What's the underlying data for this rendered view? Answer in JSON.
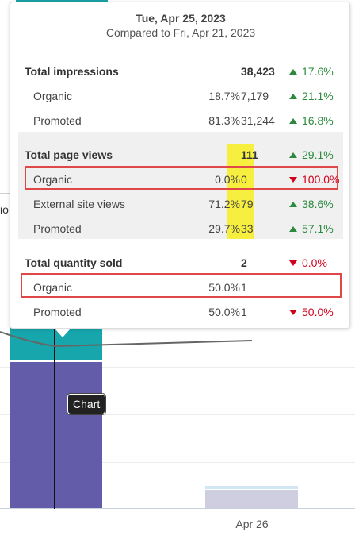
{
  "tooltip": {
    "date": "Tue, Apr 25, 2023",
    "compare": "Compared to Fri, Apr 21, 2023",
    "impressions": {
      "title": "Total impressions",
      "total": "38,423",
      "change": "17.6%",
      "rows": [
        {
          "label": "Organic",
          "pct": "18.7%",
          "value": "7,179",
          "change": "21.1%"
        },
        {
          "label": "Promoted",
          "pct": "81.3%",
          "value": "31,244",
          "change": "16.8%"
        }
      ]
    },
    "page_views": {
      "title": "Total page views",
      "total": "111",
      "change": "29.1%",
      "rows": [
        {
          "label": "Organic",
          "pct": "0.0%",
          "value": "0",
          "change": "100.0%"
        },
        {
          "label": "External site views",
          "pct": "71.2%",
          "value": "79",
          "change": "38.6%"
        },
        {
          "label": "Promoted",
          "pct": "29.7%",
          "value": "33",
          "change": "57.1%"
        }
      ]
    },
    "quantity_sold": {
      "title": "Total quantity sold",
      "total": "2",
      "change": "0.0%",
      "rows": [
        {
          "label": "Organic",
          "pct": "50.0%",
          "value": "1",
          "change": ""
        },
        {
          "label": "Promoted",
          "pct": "50.0%",
          "value": "1",
          "change": "50.0%"
        }
      ]
    }
  },
  "chart": {
    "x_axis_label": "Apr 26",
    "hover_label": "Chart",
    "partial_text": "io"
  },
  "colors": {
    "up": "#2b8a3e",
    "down": "#d0021b",
    "bar_teal": "#16a6ac",
    "bar_purple": "#635ca8",
    "highlight_yellow": "#f6ef40",
    "annotation_red": "#e04848"
  },
  "icons": {
    "up": "triangle-up-icon",
    "down": "triangle-down-icon"
  }
}
